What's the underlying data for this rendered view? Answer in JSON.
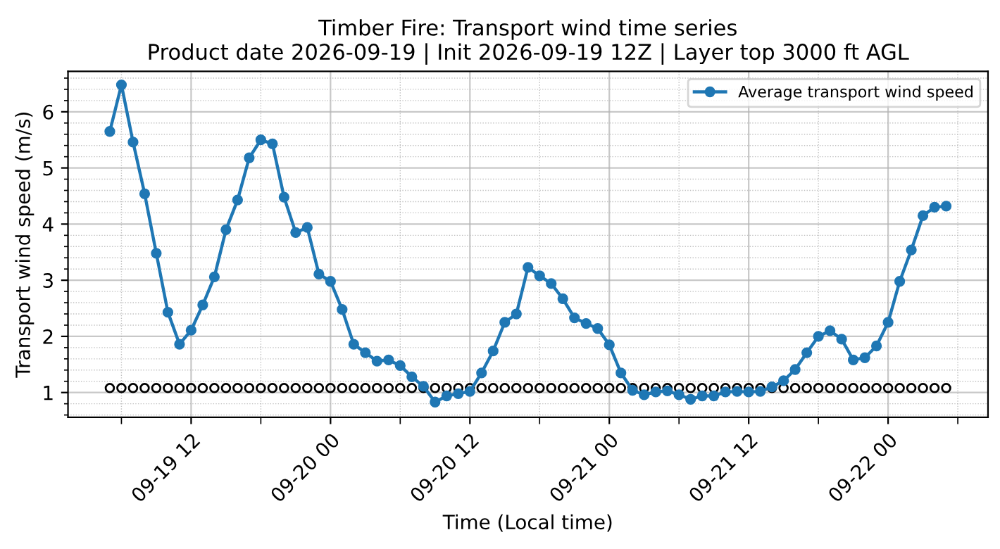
{
  "chart_data": {
    "type": "line",
    "title": "Timber Fire: Transport wind time series",
    "subtitle": "Product date 2026-09-19 | Init 2026-09-19 12Z | Layer top 3000 ft AGL",
    "xlabel": "Time (Local time)",
    "ylabel": "Transport wind speed (m/s)",
    "x": [
      "2026-09-19T05:00",
      "2026-09-19T06:00",
      "2026-09-19T07:00",
      "2026-09-19T08:00",
      "2026-09-19T09:00",
      "2026-09-19T10:00",
      "2026-09-19T11:00",
      "2026-09-19T12:00",
      "2026-09-19T13:00",
      "2026-09-19T14:00",
      "2026-09-19T15:00",
      "2026-09-19T16:00",
      "2026-09-19T17:00",
      "2026-09-19T18:00",
      "2026-09-19T19:00",
      "2026-09-19T20:00",
      "2026-09-19T21:00",
      "2026-09-19T22:00",
      "2026-09-19T23:00",
      "2026-09-20T00:00",
      "2026-09-20T01:00",
      "2026-09-20T02:00",
      "2026-09-20T03:00",
      "2026-09-20T04:00",
      "2026-09-20T05:00",
      "2026-09-20T06:00",
      "2026-09-20T07:00",
      "2026-09-20T08:00",
      "2026-09-20T09:00",
      "2026-09-20T10:00",
      "2026-09-20T11:00",
      "2026-09-20T12:00",
      "2026-09-20T13:00",
      "2026-09-20T14:00",
      "2026-09-20T15:00",
      "2026-09-20T16:00",
      "2026-09-20T17:00",
      "2026-09-20T18:00",
      "2026-09-20T19:00",
      "2026-09-20T20:00",
      "2026-09-20T21:00",
      "2026-09-20T22:00",
      "2026-09-20T23:00",
      "2026-09-21T00:00",
      "2026-09-21T01:00",
      "2026-09-21T02:00",
      "2026-09-21T03:00",
      "2026-09-21T04:00",
      "2026-09-21T05:00",
      "2026-09-21T06:00",
      "2026-09-21T07:00",
      "2026-09-21T08:00",
      "2026-09-21T09:00",
      "2026-09-21T10:00",
      "2026-09-21T11:00",
      "2026-09-21T12:00",
      "2026-09-21T13:00",
      "2026-09-21T14:00",
      "2026-09-21T15:00",
      "2026-09-21T16:00",
      "2026-09-21T17:00",
      "2026-09-21T18:00",
      "2026-09-21T19:00",
      "2026-09-21T20:00",
      "2026-09-21T21:00",
      "2026-09-21T22:00",
      "2026-09-21T23:00",
      "2026-09-22T00:00",
      "2026-09-22T01:00",
      "2026-09-22T02:00",
      "2026-09-22T03:00",
      "2026-09-22T04:00",
      "2026-09-22T05:00"
    ],
    "series": [
      {
        "name": "Average transport wind speed",
        "color": "#1f77b4",
        "marker": "circle",
        "values": [
          5.65,
          6.48,
          5.46,
          4.54,
          3.48,
          2.43,
          1.86,
          2.11,
          2.56,
          3.06,
          3.9,
          4.43,
          5.18,
          5.5,
          5.43,
          4.48,
          3.85,
          3.94,
          3.11,
          2.98,
          2.48,
          1.86,
          1.71,
          1.56,
          1.58,
          1.48,
          1.28,
          1.11,
          0.83,
          0.94,
          0.98,
          1.02,
          1.35,
          1.74,
          2.25,
          2.4,
          3.23,
          3.08,
          2.94,
          2.67,
          2.33,
          2.23,
          2.14,
          1.85,
          1.35,
          1.04,
          0.96,
          1.01,
          1.03,
          0.96,
          0.88,
          0.94,
          0.94,
          1.01,
          1.02,
          1.01,
          1.02,
          1.1,
          1.21,
          1.41,
          1.71,
          2.0,
          2.1,
          1.95,
          1.58,
          1.62,
          1.83,
          2.25,
          2.98,
          3.54,
          4.15,
          4.3,
          4.32
        ]
      },
      {
        "color": "#000000",
        "type": "scatter",
        "marker": "circle",
        "values": [
          1.08,
          1.08,
          1.08,
          1.08,
          1.08,
          1.08,
          1.08,
          1.08,
          1.08,
          1.08,
          1.08,
          1.08,
          1.08,
          1.08,
          1.08,
          1.08,
          1.08,
          1.08,
          1.08,
          1.08,
          1.08,
          1.08,
          1.08,
          1.08,
          1.08,
          1.08,
          1.08,
          1.08,
          1.08,
          1.08,
          1.08,
          1.08,
          1.08,
          1.08,
          1.08,
          1.08,
          1.08,
          1.08,
          1.08,
          1.08,
          1.08,
          1.08,
          1.08,
          1.08,
          1.08,
          1.08,
          1.08,
          1.08,
          1.08,
          1.08,
          1.08,
          1.08,
          1.08,
          1.08,
          1.08,
          1.08,
          1.08,
          1.08,
          1.08,
          1.08,
          1.08,
          1.08,
          1.08,
          1.08,
          1.08,
          1.08,
          1.08,
          1.08,
          1.08,
          1.08,
          1.08,
          1.08,
          1.08
        ]
      }
    ],
    "xlim": [
      "2026-09-19T01:24",
      "2026-09-22T08:36"
    ],
    "xticks": [
      {
        "value": "2026-09-19T06:00",
        "label": null
      },
      {
        "value": "2026-09-19T12:00",
        "label": "09-19 12"
      },
      {
        "value": "2026-09-19T18:00",
        "label": null
      },
      {
        "value": "2026-09-20T00:00",
        "label": "09-20 00"
      },
      {
        "value": "2026-09-20T06:00",
        "label": null
      },
      {
        "value": "2026-09-20T12:00",
        "label": "09-20 12"
      },
      {
        "value": "2026-09-20T18:00",
        "label": null
      },
      {
        "value": "2026-09-21T00:00",
        "label": "09-21 00"
      },
      {
        "value": "2026-09-21T06:00",
        "label": null
      },
      {
        "value": "2026-09-21T12:00",
        "label": "09-21 12"
      },
      {
        "value": "2026-09-21T18:00",
        "label": null
      },
      {
        "value": "2026-09-22T00:00",
        "label": "09-22 00"
      },
      {
        "value": "2026-09-22T06:00",
        "label": null
      }
    ],
    "ylim": [
      0.56,
      6.72
    ],
    "yticks": [
      {
        "value": 0.6,
        "label": null
      },
      {
        "value": 0.8,
        "label": null
      },
      1,
      {
        "value": 1.2,
        "label": null
      },
      {
        "value": 1.4,
        "label": null
      },
      {
        "value": 1.6,
        "label": null
      },
      {
        "value": 1.8,
        "label": null
      },
      2,
      {
        "value": 2.2,
        "label": null
      },
      {
        "value": 2.4,
        "label": null
      },
      {
        "value": 2.6,
        "label": null
      },
      {
        "value": 2.8,
        "label": null
      },
      3,
      {
        "value": 3.2,
        "label": null
      },
      {
        "value": 3.4,
        "label": null
      },
      {
        "value": 3.6,
        "label": null
      },
      {
        "value": 3.8,
        "label": null
      },
      4,
      {
        "value": 4.2,
        "label": null
      },
      {
        "value": 4.4,
        "label": null
      },
      {
        "value": 4.6,
        "label": null
      },
      {
        "value": 4.8,
        "label": null
      },
      5,
      {
        "value": 5.2,
        "label": null
      },
      {
        "value": 5.4,
        "label": null
      },
      {
        "value": 5.6,
        "label": null
      },
      {
        "value": 5.8,
        "label": null
      },
      6,
      {
        "value": 6.2,
        "label": null
      },
      {
        "value": 6.4,
        "label": null
      },
      {
        "value": 6.6,
        "label": null
      }
    ],
    "grid": true,
    "legend": "top right"
  }
}
